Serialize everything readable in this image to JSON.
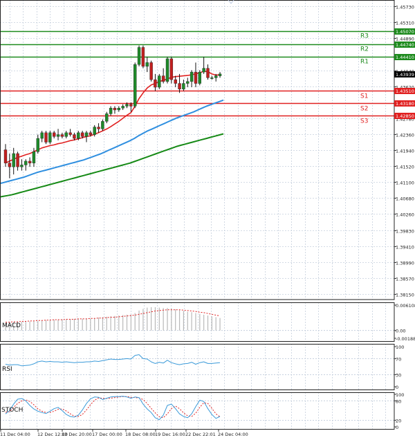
{
  "chart_data": {
    "type": "candlestick",
    "main": {
      "y_ticks": [
        "1.45730",
        "1.45310",
        "1.44890",
        "1.44040",
        "1.43620",
        "1.42780",
        "1.42360",
        "1.41940",
        "1.41520",
        "1.41100",
        "1.40680",
        "1.40260",
        "1.39830",
        "1.39410",
        "1.38990",
        "1.38570",
        "1.38150"
      ],
      "levels": [
        {
          "name": "R3",
          "value": 1.4507,
          "label": "1.45070",
          "kind": "resistance"
        },
        {
          "name": "R2",
          "value": 1.4474,
          "label": "1.44740",
          "kind": "resistance"
        },
        {
          "name": "R1",
          "value": 1.4441,
          "label": "1.44410",
          "kind": "resistance"
        },
        {
          "name": "S1",
          "value": 1.4351,
          "label": "1.43510",
          "kind": "support"
        },
        {
          "name": "S2",
          "value": 1.4318,
          "label": "1.43180",
          "kind": "support"
        },
        {
          "name": "S3",
          "value": 1.4285,
          "label": "1.42850",
          "kind": "support"
        }
      ],
      "current": {
        "value": 1.43939,
        "label": "1.43939"
      },
      "candles": [
        {
          "o": 1.4195,
          "h": 1.421,
          "l": 1.415,
          "c": 1.416
        },
        {
          "o": 1.416,
          "h": 1.4185,
          "l": 1.412,
          "c": 1.415
        },
        {
          "o": 1.415,
          "h": 1.42,
          "l": 1.413,
          "c": 1.4185
        },
        {
          "o": 1.4185,
          "h": 1.419,
          "l": 1.414,
          "c": 1.415
        },
        {
          "o": 1.415,
          "h": 1.417,
          "l": 1.414,
          "c": 1.4155
        },
        {
          "o": 1.4155,
          "h": 1.417,
          "l": 1.414,
          "c": 1.4165
        },
        {
          "o": 1.4165,
          "h": 1.4175,
          "l": 1.415,
          "c": 1.416
        },
        {
          "o": 1.416,
          "h": 1.42,
          "l": 1.415,
          "c": 1.419
        },
        {
          "o": 1.419,
          "h": 1.4235,
          "l": 1.4185,
          "c": 1.4225
        },
        {
          "o": 1.4225,
          "h": 1.4245,
          "l": 1.4215,
          "c": 1.424
        },
        {
          "o": 1.424,
          "h": 1.4245,
          "l": 1.421,
          "c": 1.4215
        },
        {
          "o": 1.4215,
          "h": 1.4245,
          "l": 1.421,
          "c": 1.424
        },
        {
          "o": 1.424,
          "h": 1.4245,
          "l": 1.4225,
          "c": 1.423
        },
        {
          "o": 1.423,
          "h": 1.425,
          "l": 1.422,
          "c": 1.4235
        },
        {
          "o": 1.4235,
          "h": 1.424,
          "l": 1.4225,
          "c": 1.423
        },
        {
          "o": 1.423,
          "h": 1.4245,
          "l": 1.4225,
          "c": 1.424
        },
        {
          "o": 1.424,
          "h": 1.425,
          "l": 1.423,
          "c": 1.4235
        },
        {
          "o": 1.4235,
          "h": 1.424,
          "l": 1.422,
          "c": 1.4225
        },
        {
          "o": 1.4225,
          "h": 1.4245,
          "l": 1.422,
          "c": 1.424
        },
        {
          "o": 1.424,
          "h": 1.4245,
          "l": 1.4225,
          "c": 1.423
        },
        {
          "o": 1.423,
          "h": 1.4245,
          "l": 1.4215,
          "c": 1.424
        },
        {
          "o": 1.424,
          "h": 1.4245,
          "l": 1.423,
          "c": 1.4235
        },
        {
          "o": 1.4235,
          "h": 1.426,
          "l": 1.423,
          "c": 1.4255
        },
        {
          "o": 1.4255,
          "h": 1.4265,
          "l": 1.424,
          "c": 1.425
        },
        {
          "o": 1.425,
          "h": 1.4275,
          "l": 1.4245,
          "c": 1.427
        },
        {
          "o": 1.427,
          "h": 1.4295,
          "l": 1.4265,
          "c": 1.429
        },
        {
          "o": 1.429,
          "h": 1.431,
          "l": 1.4285,
          "c": 1.4305
        },
        {
          "o": 1.4305,
          "h": 1.431,
          "l": 1.429,
          "c": 1.43
        },
        {
          "o": 1.43,
          "h": 1.431,
          "l": 1.4295,
          "c": 1.4305
        },
        {
          "o": 1.4305,
          "h": 1.4315,
          "l": 1.43,
          "c": 1.431
        },
        {
          "o": 1.431,
          "h": 1.432,
          "l": 1.4305,
          "c": 1.4315
        },
        {
          "o": 1.4315,
          "h": 1.432,
          "l": 1.4295,
          "c": 1.431
        },
        {
          "o": 1.431,
          "h": 1.4425,
          "l": 1.4305,
          "c": 1.442
        },
        {
          "o": 1.442,
          "h": 1.447,
          "l": 1.4415,
          "c": 1.4465
        },
        {
          "o": 1.4465,
          "h": 1.447,
          "l": 1.441,
          "c": 1.4415
        },
        {
          "o": 1.4415,
          "h": 1.444,
          "l": 1.44,
          "c": 1.4425
        },
        {
          "o": 1.4425,
          "h": 1.443,
          "l": 1.4375,
          "c": 1.438
        },
        {
          "o": 1.438,
          "h": 1.4395,
          "l": 1.435,
          "c": 1.436
        },
        {
          "o": 1.436,
          "h": 1.4395,
          "l": 1.4355,
          "c": 1.439
        },
        {
          "o": 1.439,
          "h": 1.441,
          "l": 1.437,
          "c": 1.4375
        },
        {
          "o": 1.4375,
          "h": 1.444,
          "l": 1.437,
          "c": 1.4435
        },
        {
          "o": 1.4435,
          "h": 1.444,
          "l": 1.437,
          "c": 1.438
        },
        {
          "o": 1.438,
          "h": 1.439,
          "l": 1.436,
          "c": 1.437
        },
        {
          "o": 1.437,
          "h": 1.4395,
          "l": 1.4345,
          "c": 1.4355
        },
        {
          "o": 1.4355,
          "h": 1.438,
          "l": 1.435,
          "c": 1.437
        },
        {
          "o": 1.437,
          "h": 1.4385,
          "l": 1.436,
          "c": 1.4375
        },
        {
          "o": 1.4375,
          "h": 1.4405,
          "l": 1.436,
          "c": 1.44
        },
        {
          "o": 1.44,
          "h": 1.4425,
          "l": 1.436,
          "c": 1.437
        },
        {
          "o": 1.437,
          "h": 1.4405,
          "l": 1.4365,
          "c": 1.44
        },
        {
          "o": 1.44,
          "h": 1.444,
          "l": 1.4395,
          "c": 1.441
        },
        {
          "o": 1.441,
          "h": 1.442,
          "l": 1.438,
          "c": 1.4385
        },
        {
          "o": 1.4385,
          "h": 1.439,
          "l": 1.438,
          "c": 1.4385
        },
        {
          "o": 1.4385,
          "h": 1.4395,
          "l": 1.4375,
          "c": 1.439
        },
        {
          "o": 1.439,
          "h": 1.44,
          "l": 1.4385,
          "c": 1.4395
        }
      ],
      "ma_red": [
        1.416,
        1.4165,
        1.417,
        1.4175,
        1.4178,
        1.4182,
        1.4185,
        1.419,
        1.4195,
        1.42,
        1.4203,
        1.4206,
        1.4208,
        1.4211,
        1.4213,
        1.4216,
        1.4219,
        1.4221,
        1.4224,
        1.4227,
        1.423,
        1.4232,
        1.4236,
        1.424,
        1.4245,
        1.425,
        1.4256,
        1.4263,
        1.427,
        1.4278,
        1.4286,
        1.4293,
        1.431,
        1.433,
        1.4345,
        1.4358,
        1.4366,
        1.437,
        1.4375,
        1.4378,
        1.4382,
        1.4386,
        1.4388,
        1.4389,
        1.439,
        1.4391,
        1.4393,
        1.4395,
        1.4398,
        1.4402,
        1.4401,
        1.4395,
        1.4392,
        1.4393
      ],
      "ma_blue": [
        1.4105,
        1.4108,
        1.4111,
        1.4114,
        1.4117,
        1.412,
        1.4123,
        1.4127,
        1.4131,
        1.4135,
        1.4138,
        1.4141,
        1.4144,
        1.4147,
        1.415,
        1.4153,
        1.4156,
        1.4159,
        1.4162,
        1.4165,
        1.4168,
        1.4172,
        1.4176,
        1.418,
        1.4184,
        1.4189,
        1.4194,
        1.4199,
        1.4204,
        1.4209,
        1.4214,
        1.4219,
        1.4225,
        1.4232,
        1.4238,
        1.4244,
        1.4249,
        1.4254,
        1.4259,
        1.4264,
        1.4269,
        1.4274,
        1.4279,
        1.4283,
        1.4287,
        1.4291,
        1.4295,
        1.43,
        1.4305,
        1.431,
        1.4314,
        1.4318,
        1.4322,
        1.4326
      ],
      "ma_green": [
        1.407,
        1.4072,
        1.4074,
        1.4076,
        1.4079,
        1.4082,
        1.4085,
        1.4088,
        1.4091,
        1.4094,
        1.4097,
        1.41,
        1.4103,
        1.4106,
        1.4109,
        1.4112,
        1.4115,
        1.4118,
        1.4121,
        1.4124,
        1.4127,
        1.413,
        1.4133,
        1.4136,
        1.4139,
        1.4142,
        1.4145,
        1.4148,
        1.4151,
        1.4154,
        1.4157,
        1.416,
        1.4164,
        1.4168,
        1.4172,
        1.4176,
        1.418,
        1.4184,
        1.4188,
        1.4192,
        1.4196,
        1.42,
        1.4204,
        1.4207,
        1.421,
        1.4213,
        1.4216,
        1.4219,
        1.4222,
        1.4225,
        1.4228,
        1.4231,
        1.4234,
        1.4237
      ]
    },
    "macd": {
      "label": "MACD",
      "y_ticks": [
        "0.006108",
        "0.00",
        "-0.001887"
      ],
      "bars": [
        0.0018,
        0.0019,
        0.002,
        0.002,
        0.0021,
        0.0021,
        0.0022,
        0.0022,
        0.0023,
        0.0024,
        0.0025,
        0.0025,
        0.0026,
        0.0026,
        0.0027,
        0.0027,
        0.0027,
        0.0028,
        0.0028,
        0.0028,
        0.0029,
        0.0029,
        0.003,
        0.0031,
        0.0032,
        0.0033,
        0.0034,
        0.0035,
        0.0036,
        0.0037,
        0.0038,
        0.0038,
        0.0042,
        0.0048,
        0.0052,
        0.0055,
        0.0056,
        0.0056,
        0.0055,
        0.0054,
        0.0054,
        0.0053,
        0.0051,
        0.0049,
        0.0047,
        0.0045,
        0.0044,
        0.0042,
        0.004,
        0.0038,
        0.0036,
        0.0034,
        0.0032,
        0.003
      ],
      "signal": [
        0.002,
        0.002,
        0.0021,
        0.0021,
        0.0022,
        0.0022,
        0.0023,
        0.0023,
        0.0024,
        0.0024,
        0.0025,
        0.0025,
        0.0026,
        0.0026,
        0.0026,
        0.0027,
        0.0027,
        0.0027,
        0.0028,
        0.0028,
        0.0028,
        0.0029,
        0.0029,
        0.003,
        0.003,
        0.0031,
        0.0032,
        0.0032,
        0.0033,
        0.0034,
        0.0035,
        0.0036,
        0.0037,
        0.0039,
        0.0041,
        0.0043,
        0.0045,
        0.0047,
        0.0048,
        0.0049,
        0.005,
        0.005,
        0.005,
        0.005,
        0.0049,
        0.0048,
        0.0047,
        0.0046,
        0.0044,
        0.0043,
        0.0041,
        0.0039,
        0.0037,
        0.0035
      ]
    },
    "rsi": {
      "label": "RSI",
      "y_ticks": [
        "100",
        "70",
        "30",
        "0"
      ],
      "values": [
        56,
        54,
        55,
        55,
        52,
        53,
        54,
        57,
        62,
        64,
        62,
        63,
        62,
        62,
        61,
        62,
        61,
        60,
        61,
        61,
        62,
        62,
        64,
        63,
        65,
        67,
        69,
        68,
        68,
        69,
        70,
        69,
        78,
        80,
        70,
        69,
        62,
        58,
        61,
        59,
        66,
        60,
        57,
        55,
        57,
        58,
        61,
        56,
        60,
        62,
        58,
        58,
        59,
        60
      ]
    },
    "stoch": {
      "label": "STOCH",
      "y_ticks": [
        "100",
        "80",
        "20",
        "0"
      ],
      "k": [
        40,
        50,
        70,
        85,
        87,
        80,
        66,
        55,
        48,
        44,
        41,
        48,
        56,
        60,
        50,
        38,
        32,
        30,
        36,
        52,
        72,
        86,
        92,
        91,
        84,
        88,
        92,
        93,
        93,
        94,
        92,
        88,
        92,
        90,
        70,
        55,
        44,
        28,
        22,
        36,
        66,
        70,
        56,
        40,
        32,
        28,
        40,
        62,
        82,
        78,
        56,
        38,
        26,
        32
      ],
      "d": [
        45,
        47,
        60,
        72,
        80,
        83,
        78,
        68,
        55,
        48,
        44,
        44,
        48,
        54,
        55,
        49,
        40,
        33,
        32,
        38,
        52,
        68,
        82,
        89,
        88,
        87,
        88,
        90,
        92,
        93,
        93,
        91,
        90,
        89,
        84,
        72,
        57,
        43,
        31,
        28,
        40,
        56,
        64,
        56,
        43,
        34,
        32,
        42,
        60,
        74,
        72,
        57,
        40,
        31
      ]
    },
    "x_labels": [
      "11 Dec 04:00",
      "12 Dec 12:00",
      "13 Dec 20:00",
      "17 Dec 00:00",
      "18 Dec 08:00",
      "19 Dec 16:00",
      "22 Dec 22:01",
      "24 Dec 04:00"
    ]
  }
}
